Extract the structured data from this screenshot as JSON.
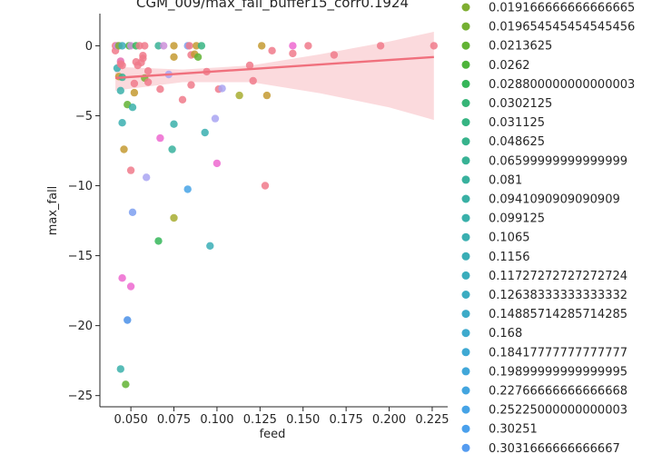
{
  "chart_data": {
    "type": "scatter",
    "title": "CGM_009/max_fall_buffer15_corr0.1924",
    "xlabel": "feed",
    "ylabel": "max_fall",
    "xlim": [
      0.032,
      0.234
    ],
    "ylim": [
      -25.8,
      2.3
    ],
    "xticks": [
      0.05,
      0.075,
      0.1,
      0.125,
      0.15,
      0.175,
      0.2,
      0.225
    ],
    "xtick_labels": [
      "0.050",
      "0.075",
      "0.100",
      "0.125",
      "0.150",
      "0.175",
      "0.200",
      "0.225"
    ],
    "yticks": [
      0,
      -5,
      -10,
      -15,
      -20,
      -25
    ],
    "ytick_labels": [
      "0",
      "−5",
      "−10",
      "−15",
      "−20",
      "−25"
    ],
    "grid": false,
    "legend_position": "right",
    "legend_entries": [
      {
        "label": "0.019166666666666665",
        "color": "#7fae31"
      },
      {
        "label": "0.019654545454545456",
        "color": "#74b032"
      },
      {
        "label": "0.0213625",
        "color": "#62b334"
      },
      {
        "label": "0.0262",
        "color": "#4eb43b"
      },
      {
        "label": "0.028800000000000003",
        "color": "#35b659"
      },
      {
        "label": "0.0302125",
        "color": "#36b577"
      },
      {
        "label": "0.031125",
        "color": "#36b482"
      },
      {
        "label": "0.048625",
        "color": "#37b38c"
      },
      {
        "label": "0.06599999999999999",
        "color": "#38b295"
      },
      {
        "label": "0.081",
        "color": "#38b19d"
      },
      {
        "label": "0.0941090909090909",
        "color": "#39b0a4"
      },
      {
        "label": "0.099125",
        "color": "#39b0aa"
      },
      {
        "label": "0.1065",
        "color": "#3aafb0"
      },
      {
        "label": "0.1156",
        "color": "#3aaeb6"
      },
      {
        "label": "0.11727272727272724",
        "color": "#3badbc"
      },
      {
        "label": "0.12638333333333332",
        "color": "#3cacc1"
      },
      {
        "label": "0.14885714285714285",
        "color": "#3dabc7"
      },
      {
        "label": "0.168",
        "color": "#3eaacd"
      },
      {
        "label": "0.18417777777777777",
        "color": "#3fa9d3"
      },
      {
        "label": "0.19899999999999995",
        "color": "#41a7d9"
      },
      {
        "label": "0.22766666666666668",
        "color": "#43a5df"
      },
      {
        "label": "0.25225000000000003",
        "color": "#46a3e6"
      },
      {
        "label": "0.30251",
        "color": "#4aa0ec"
      },
      {
        "label": "0.3031666666666667",
        "color": "#559cf0"
      }
    ],
    "regression": {
      "line_color": "#f0707d",
      "band_color": "#fbdadd",
      "line": [
        [
          0.041,
          -2.3
        ],
        [
          0.226,
          -0.8
        ]
      ],
      "band_upper": [
        [
          0.041,
          -1.5
        ],
        [
          0.08,
          -1.7
        ],
        [
          0.12,
          -1.4
        ],
        [
          0.16,
          -0.6
        ],
        [
          0.2,
          0.3
        ],
        [
          0.226,
          1.0
        ]
      ],
      "band_lower": [
        [
          0.041,
          -3.2
        ],
        [
          0.08,
          -2.6
        ],
        [
          0.12,
          -2.6
        ],
        [
          0.16,
          -3.4
        ],
        [
          0.2,
          -4.4
        ],
        [
          0.226,
          -5.3
        ]
      ]
    },
    "points": [
      {
        "x": 0.041,
        "y": 0.0,
        "color": "#f07a8b"
      },
      {
        "x": 0.041,
        "y": -0.35,
        "color": "#f07a8b"
      },
      {
        "x": 0.042,
        "y": 0.0,
        "color": "#cc8fd9"
      },
      {
        "x": 0.042,
        "y": -1.6,
        "color": "#3aafb0"
      },
      {
        "x": 0.043,
        "y": 0.0,
        "color": "#7fae31"
      },
      {
        "x": 0.043,
        "y": -2.2,
        "color": "#c49a31"
      },
      {
        "x": 0.044,
        "y": -1.1,
        "color": "#e56db0"
      },
      {
        "x": 0.044,
        "y": -1.3,
        "color": "#f07a8b"
      },
      {
        "x": 0.044,
        "y": -3.2,
        "color": "#39b0aa"
      },
      {
        "x": 0.045,
        "y": 0.0,
        "color": "#3badbc"
      },
      {
        "x": 0.045,
        "y": -1.4,
        "color": "#f07a8b"
      },
      {
        "x": 0.045,
        "y": -2.25,
        "color": "#38b295"
      },
      {
        "x": 0.045,
        "y": -5.5,
        "color": "#3aafb0"
      },
      {
        "x": 0.045,
        "y": -16.6,
        "color": "#ed69d0"
      },
      {
        "x": 0.046,
        "y": -7.4,
        "color": "#c49a31"
      },
      {
        "x": 0.044,
        "y": -23.1,
        "color": "#39b0aa"
      },
      {
        "x": 0.047,
        "y": -24.2,
        "color": "#62b334"
      },
      {
        "x": 0.048,
        "y": -19.6,
        "color": "#4a8fe8"
      },
      {
        "x": 0.048,
        "y": -4.2,
        "color": "#62b334"
      },
      {
        "x": 0.049,
        "y": 0.0,
        "color": "#4eb43b"
      },
      {
        "x": 0.05,
        "y": 0.0,
        "color": "#cc8fd9"
      },
      {
        "x": 0.05,
        "y": -8.9,
        "color": "#f07a8b"
      },
      {
        "x": 0.05,
        "y": -17.2,
        "color": "#ed69d0"
      },
      {
        "x": 0.051,
        "y": -4.4,
        "color": "#39b0aa"
      },
      {
        "x": 0.051,
        "y": -11.9,
        "color": "#7c9ff0"
      },
      {
        "x": 0.052,
        "y": -2.7,
        "color": "#f07a8b"
      },
      {
        "x": 0.052,
        "y": -3.35,
        "color": "#c49a31"
      },
      {
        "x": 0.053,
        "y": 0.0,
        "color": "#35b659"
      },
      {
        "x": 0.053,
        "y": -1.15,
        "color": "#f07a8b"
      },
      {
        "x": 0.054,
        "y": -1.4,
        "color": "#f07a8b"
      },
      {
        "x": 0.055,
        "y": 0.0,
        "color": "#f07a8b"
      },
      {
        "x": 0.056,
        "y": -1.2,
        "color": "#f07a8b"
      },
      {
        "x": 0.057,
        "y": -0.7,
        "color": "#f07a8b"
      },
      {
        "x": 0.057,
        "y": -0.9,
        "color": "#f07a8b"
      },
      {
        "x": 0.058,
        "y": 0.0,
        "color": "#f07a8b"
      },
      {
        "x": 0.058,
        "y": -2.3,
        "color": "#74b032"
      },
      {
        "x": 0.059,
        "y": -9.4,
        "color": "#a9a4f2"
      },
      {
        "x": 0.06,
        "y": -1.8,
        "color": "#f07a8b"
      },
      {
        "x": 0.06,
        "y": -2.6,
        "color": "#f07a8b"
      },
      {
        "x": 0.066,
        "y": 0.0,
        "color": "#38b295"
      },
      {
        "x": 0.066,
        "y": -13.95,
        "color": "#35b659"
      },
      {
        "x": 0.067,
        "y": -3.1,
        "color": "#f07a8b"
      },
      {
        "x": 0.067,
        "y": -6.6,
        "color": "#ed69d0"
      },
      {
        "x": 0.069,
        "y": 0.0,
        "color": "#cc8fd9"
      },
      {
        "x": 0.072,
        "y": -2.05,
        "color": "#a9a4f2"
      },
      {
        "x": 0.074,
        "y": -7.4,
        "color": "#38b19d"
      },
      {
        "x": 0.075,
        "y": 0.0,
        "color": "#c49a31"
      },
      {
        "x": 0.075,
        "y": -0.8,
        "color": "#c49a31"
      },
      {
        "x": 0.075,
        "y": -5.6,
        "color": "#39b0aa"
      },
      {
        "x": 0.075,
        "y": -12.3,
        "color": "#a7ad31"
      },
      {
        "x": 0.08,
        "y": -3.85,
        "color": "#f07a8b"
      },
      {
        "x": 0.083,
        "y": 0.0,
        "color": "#7c9ff0"
      },
      {
        "x": 0.083,
        "y": -10.25,
        "color": "#46a3e6"
      },
      {
        "x": 0.084,
        "y": 0.0,
        "color": "#f07a8b"
      },
      {
        "x": 0.085,
        "y": -0.65,
        "color": "#f07a8b"
      },
      {
        "x": 0.085,
        "y": -2.8,
        "color": "#f07a8b"
      },
      {
        "x": 0.087,
        "y": -0.6,
        "color": "#c49a31"
      },
      {
        "x": 0.088,
        "y": 0.0,
        "color": "#c49a31"
      },
      {
        "x": 0.089,
        "y": -0.8,
        "color": "#62b334"
      },
      {
        "x": 0.091,
        "y": 0.0,
        "color": "#36b482"
      },
      {
        "x": 0.093,
        "y": -6.2,
        "color": "#3aafb0"
      },
      {
        "x": 0.094,
        "y": -1.85,
        "color": "#f07a8b"
      },
      {
        "x": 0.096,
        "y": -14.3,
        "color": "#3aaeb6"
      },
      {
        "x": 0.099,
        "y": -5.2,
        "color": "#a9a4f2"
      },
      {
        "x": 0.1,
        "y": -8.4,
        "color": "#ed69d0"
      },
      {
        "x": 0.101,
        "y": -3.1,
        "color": "#f07a8b"
      },
      {
        "x": 0.103,
        "y": -3.05,
        "color": "#a9a4f2"
      },
      {
        "x": 0.113,
        "y": -3.55,
        "color": "#a7ad31"
      },
      {
        "x": 0.119,
        "y": -1.4,
        "color": "#f07a8b"
      },
      {
        "x": 0.121,
        "y": -2.5,
        "color": "#f07a8b"
      },
      {
        "x": 0.126,
        "y": 0.0,
        "color": "#c49a31"
      },
      {
        "x": 0.128,
        "y": -10.0,
        "color": "#f07a8b"
      },
      {
        "x": 0.129,
        "y": -3.55,
        "color": "#c49a31"
      },
      {
        "x": 0.132,
        "y": -0.35,
        "color": "#f07a8b"
      },
      {
        "x": 0.144,
        "y": 0.0,
        "color": "#ed69d0"
      },
      {
        "x": 0.144,
        "y": -0.55,
        "color": "#f07a8b"
      },
      {
        "x": 0.153,
        "y": 0.0,
        "color": "#f07a8b"
      },
      {
        "x": 0.168,
        "y": -0.65,
        "color": "#f07a8b"
      },
      {
        "x": 0.195,
        "y": 0.0,
        "color": "#f07a8b"
      },
      {
        "x": 0.226,
        "y": 0.0,
        "color": "#f07a8b"
      }
    ]
  }
}
